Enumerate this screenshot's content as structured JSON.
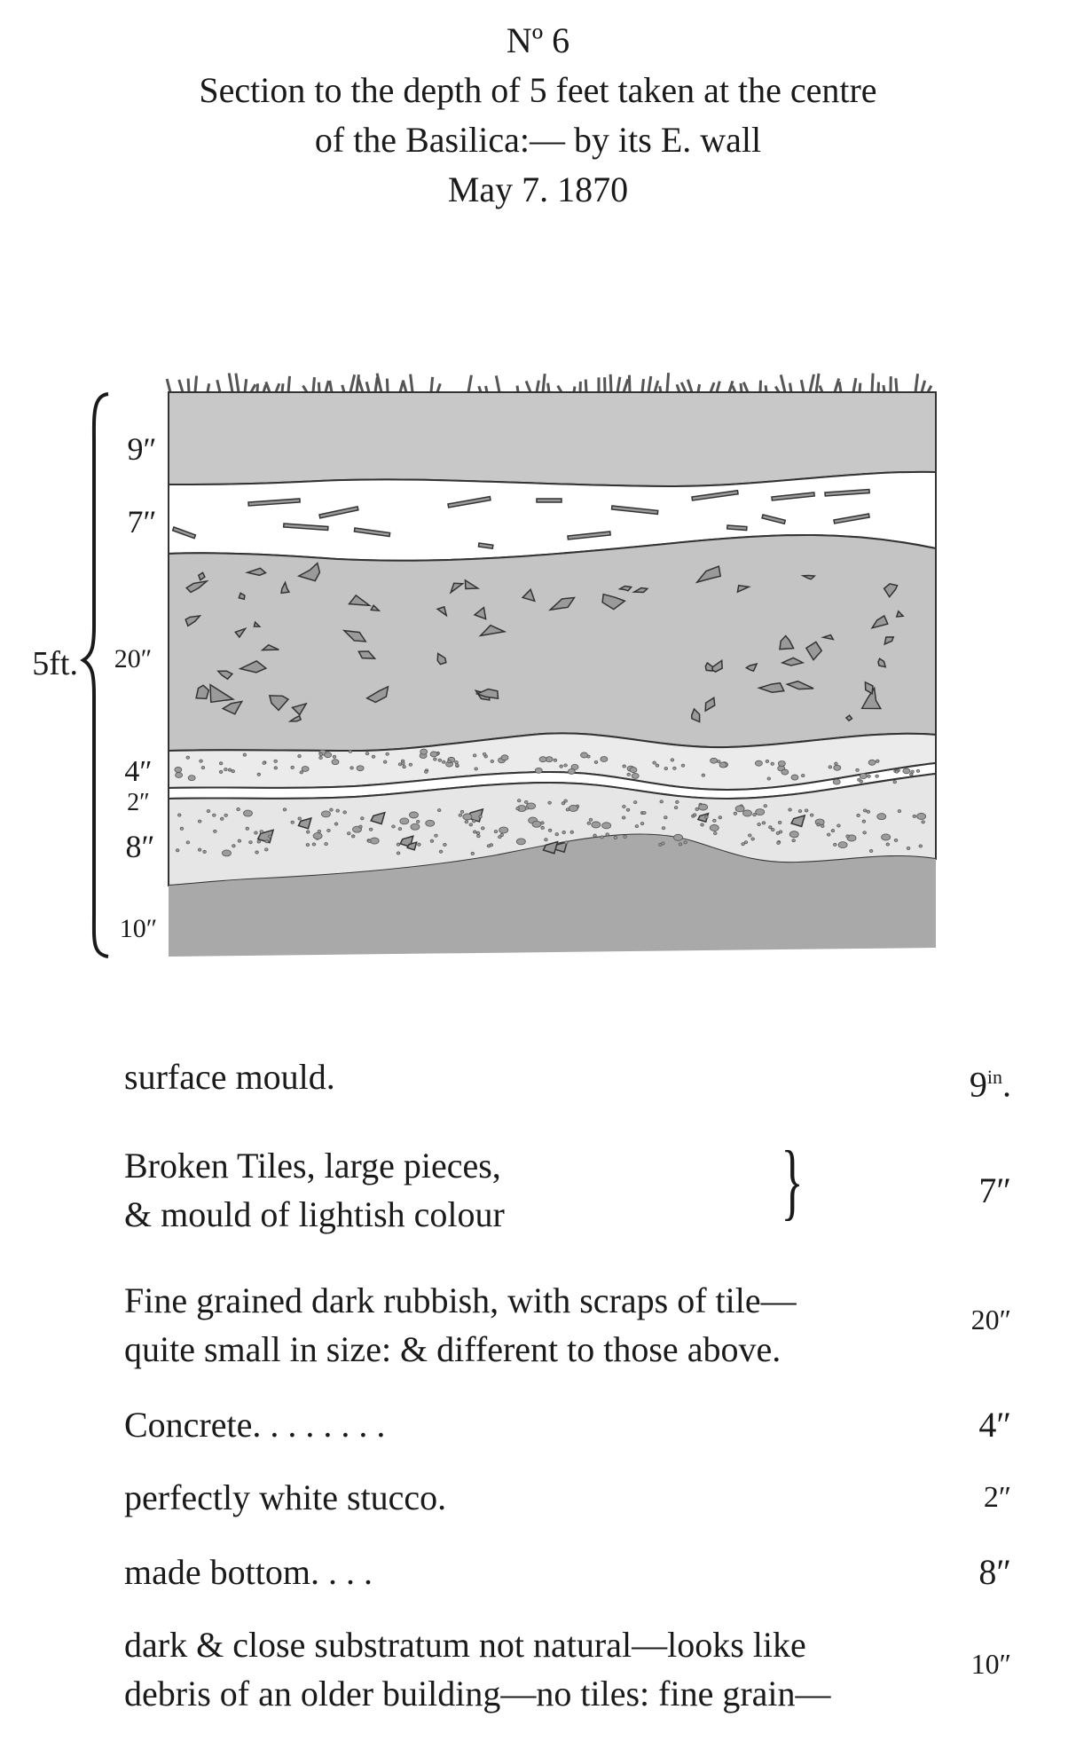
{
  "header": {
    "number": "Nº 6",
    "line1": "Section to the depth of 5 feet taken at the centre",
    "line2": "of the Basilica:— by its E. wall",
    "date": "May 7. 1870"
  },
  "diagram": {
    "total_label": "5ft.",
    "layer_labels": [
      "9″",
      "7″",
      "20″",
      "4″",
      "2″",
      "8″",
      "10″"
    ]
  },
  "legend": [
    {
      "desc": "surface mould.",
      "val": "9in."
    },
    {
      "desc": "Broken Tiles, large pieces,\n& mould of lightish colour",
      "val": "7″",
      "brace": "}"
    },
    {
      "desc": "Fine grained dark rubbish, with scraps of tile—\nquite small in size: & different to those above.",
      "val": "20″"
    },
    {
      "desc": "Concrete. . . . . . . .",
      "val": "4″"
    },
    {
      "desc": "perfectly white stucco.",
      "val": "2″"
    },
    {
      "desc": "made bottom. . . .",
      "val": "8″"
    },
    {
      "desc": "dark & close substratum not natural—looks like\ndebris of an older building—no tiles: fine grain—",
      "val": "10″"
    }
  ],
  "colors": {
    "surface": "#c8c8c8",
    "tiles_layer": "#ffffff",
    "rubbish": "#c4c4c4",
    "concrete": "#ebebeb",
    "stucco": "#ffffff",
    "made_bottom": "#e6e6e6",
    "substratum": "#a9a9a9",
    "fragment": "#9a9a9a",
    "outline": "#333333"
  }
}
